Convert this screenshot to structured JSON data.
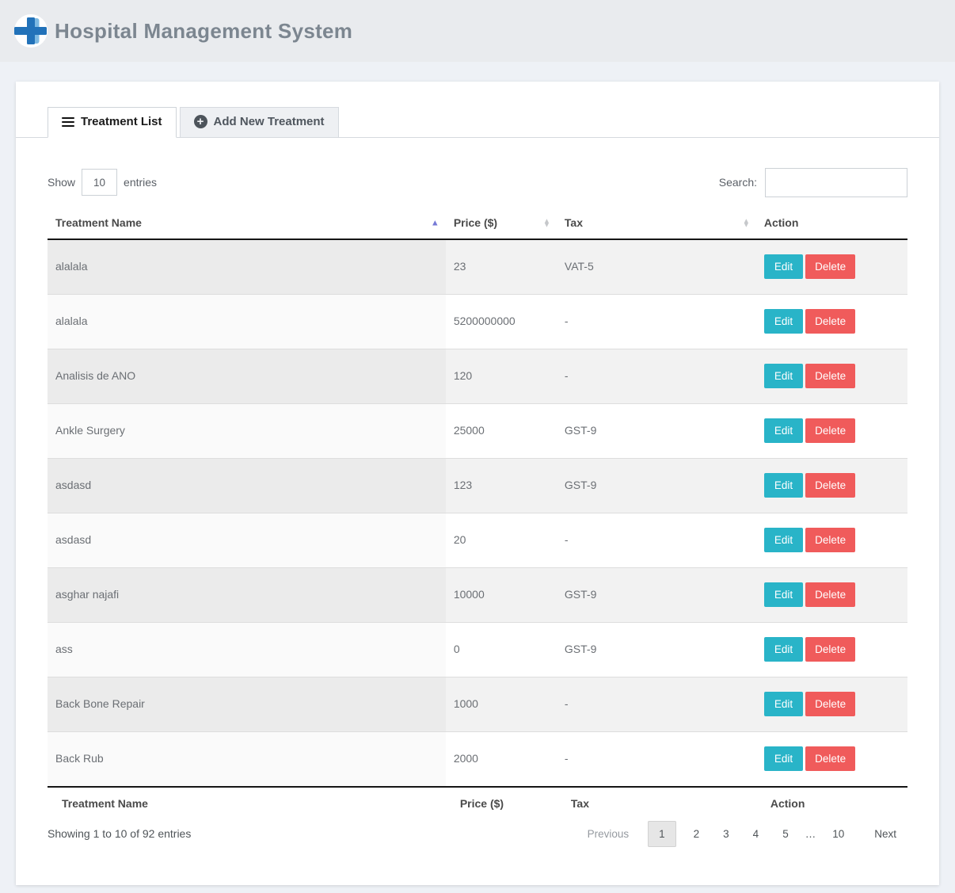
{
  "header": {
    "title": "Hospital Management System"
  },
  "tabs": [
    {
      "label": "Treatment List",
      "active": true
    },
    {
      "label": "Add New Treatment",
      "active": false
    }
  ],
  "controls": {
    "show_label": "Show",
    "entries_label": "entries",
    "page_size": "10",
    "search_label": "Search:",
    "search_value": ""
  },
  "table": {
    "columns": [
      {
        "label": "Treatment Name",
        "sort": "asc"
      },
      {
        "label": "Price ($)",
        "sort": "both"
      },
      {
        "label": "Tax",
        "sort": "both"
      },
      {
        "label": "Action",
        "sort": "none"
      }
    ],
    "edit_label": "Edit",
    "delete_label": "Delete",
    "rows": [
      {
        "name": "alalala",
        "price": "23",
        "tax": "VAT-5"
      },
      {
        "name": "alalala",
        "price": "5200000000",
        "tax": "-"
      },
      {
        "name": "Analisis de ANO",
        "price": "120",
        "tax": "-"
      },
      {
        "name": "Ankle Surgery",
        "price": "25000",
        "tax": "GST-9"
      },
      {
        "name": "asdasd",
        "price": "123",
        "tax": "GST-9"
      },
      {
        "name": "asdasd",
        "price": "20",
        "tax": "-"
      },
      {
        "name": "asghar najafi",
        "price": "10000",
        "tax": "GST-9"
      },
      {
        "name": "ass",
        "price": "0",
        "tax": "GST-9"
      },
      {
        "name": "Back Bone Repair",
        "price": "1000",
        "tax": "-"
      },
      {
        "name": "Back Rub",
        "price": "2000",
        "tax": "-"
      }
    ]
  },
  "footer": {
    "info": "Showing 1 to 10 of 92 entries",
    "pagination": {
      "previous": "Previous",
      "pages": [
        "1",
        "2",
        "3",
        "4",
        "5",
        "…",
        "10"
      ],
      "current_page": "1",
      "next": "Next"
    }
  },
  "colors": {
    "edit_button": "#29b4c8",
    "delete_button": "#f05b5b",
    "sort_active_arrow": "#767ad6",
    "header_bg": "#e9ebee",
    "page_bg": "#eef1f6"
  }
}
